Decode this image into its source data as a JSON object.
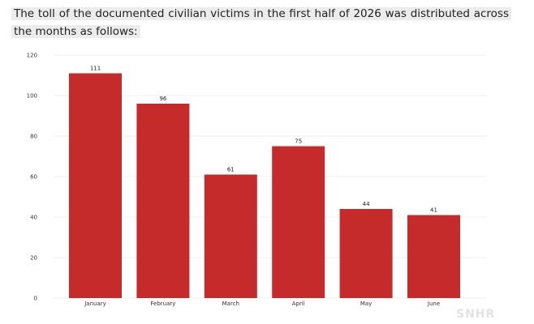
{
  "caption": "The toll of the documented civilian victims in the first half of 2026 was distributed across the months as follows:",
  "watermark": "SNHR",
  "chart_data": {
    "type": "bar",
    "title": "",
    "xlabel": "",
    "ylabel": "",
    "categories": [
      "January",
      "February",
      "March",
      "April",
      "May",
      "June"
    ],
    "values": [
      111,
      96,
      61,
      75,
      44,
      41
    ],
    "ylim": [
      0,
      120
    ],
    "yticks": [
      0,
      20,
      40,
      60,
      80,
      100,
      120
    ],
    "grid": true,
    "legend": "none",
    "bar_color": "#c62b2b"
  }
}
